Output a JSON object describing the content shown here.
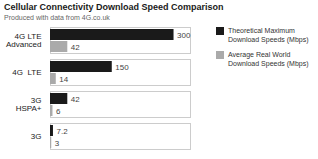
{
  "chart_data": {
    "type": "bar",
    "orientation": "horizontal",
    "title": "Cellular Connectivity Download Speed Comparison",
    "subtitle": "Produced with data from 4G.co.uk",
    "categories": [
      "4G LTE\nAdvanced",
      "4G  LTE",
      "3G\nHSPA+",
      "3G"
    ],
    "series": [
      {
        "name": "Theoretical Maximum\nDownload Speeds (Mbps)",
        "color": "#1a1a1a",
        "values": [
          300,
          150,
          42,
          7.2
        ]
      },
      {
        "name": "Average Real World\nDownload Speeds (Mbps)",
        "color": "#aaaaaa",
        "values": [
          42,
          14,
          6,
          3
        ]
      }
    ],
    "xlim": [
      0,
      340
    ],
    "data_labels": true,
    "tick_labels": "y",
    "grid": false,
    "legend": "upper right"
  }
}
